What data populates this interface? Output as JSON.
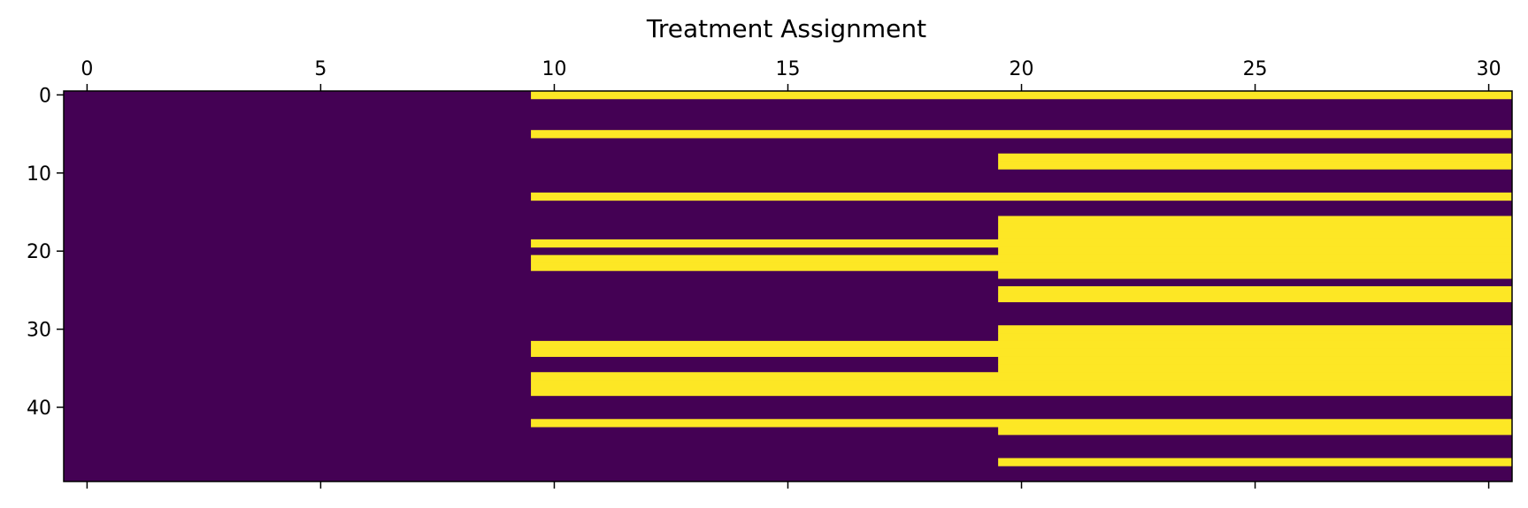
{
  "chart_data": {
    "type": "heatmap",
    "title": "Treatment Assignment",
    "xlabel": "",
    "ylabel": "",
    "colormap": "viridis",
    "colors": {
      "0": "#440154",
      "1": "#fde725"
    },
    "x_range": [
      -0.5,
      30.5
    ],
    "y_range": [
      -0.5,
      49.5
    ],
    "x_axis_position": "top",
    "y_axis_inverted": true,
    "grid": false,
    "x_ticks": [
      0,
      5,
      10,
      15,
      20,
      25,
      30
    ],
    "y_ticks": [
      0,
      10,
      20,
      30,
      40
    ],
    "n_rows": 50,
    "n_cols": 31,
    "treated_from_column": [
      10,
      null,
      null,
      null,
      null,
      10,
      null,
      null,
      20,
      20,
      null,
      null,
      null,
      10,
      null,
      null,
      20,
      20,
      20,
      10,
      20,
      10,
      10,
      20,
      null,
      20,
      20,
      null,
      null,
      null,
      20,
      20,
      10,
      10,
      20,
      20,
      10,
      10,
      10,
      null,
      null,
      null,
      10,
      20,
      null,
      null,
      null,
      20,
      null,
      null
    ],
    "value_encoding": "row i is 1 for columns >= treated_from_column[i], 0 otherwise; null means 0 across the row"
  }
}
